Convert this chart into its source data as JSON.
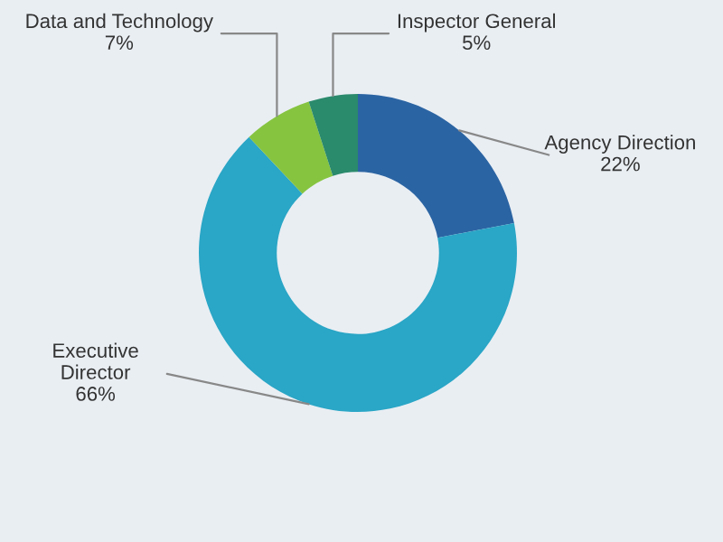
{
  "chart_data": {
    "type": "donut",
    "categories": [
      "Agency Direction",
      "Executive\nDirector",
      "Data and Technology",
      "Inspector General"
    ],
    "values": [
      22,
      66,
      7,
      5
    ],
    "value_labels": [
      "22%",
      "66%",
      "7%",
      "5%"
    ],
    "colors": [
      "#2b64a3",
      "#2aa6c6",
      "#86c440",
      "#2a8a6c"
    ],
    "legend": false
  }
}
